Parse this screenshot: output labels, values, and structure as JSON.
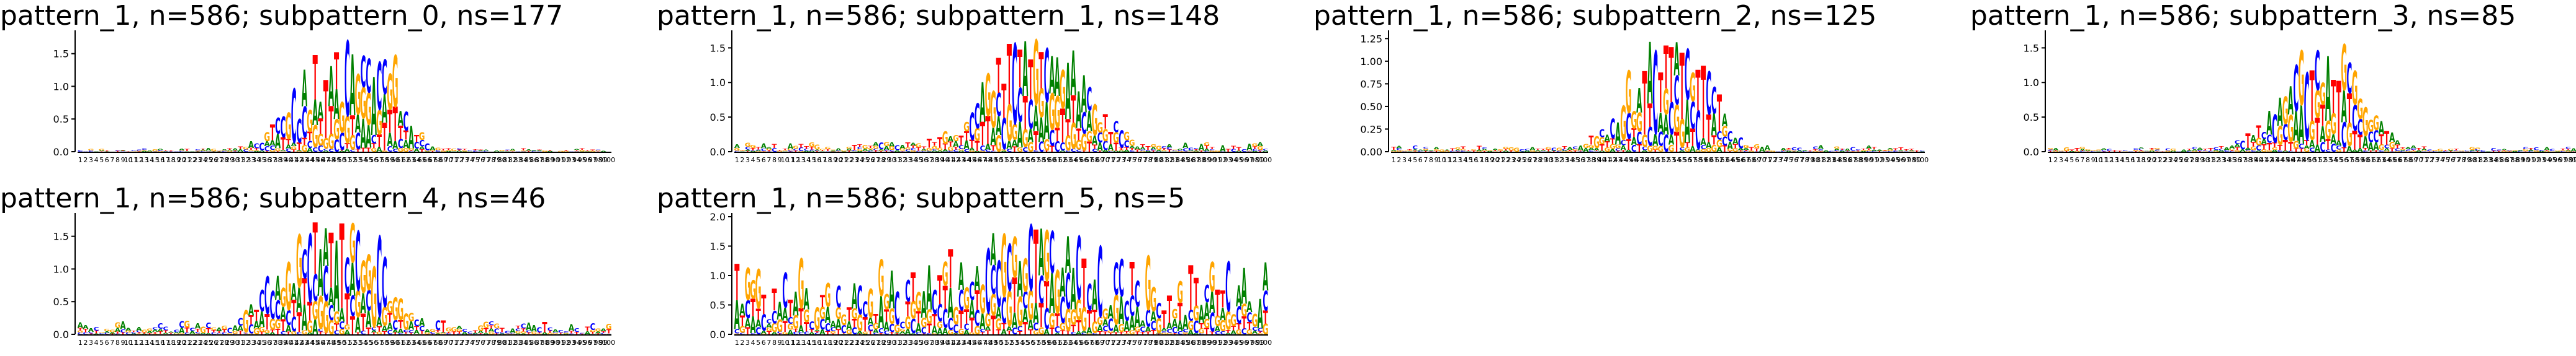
{
  "chart_data": [
    {
      "type": "sequence-logo",
      "title": "pattern_1, n=586; subpattern_0, ns=177",
      "xticks": "1-100",
      "yticks": [
        "0.0",
        "0.5",
        "1.0",
        "1.5"
      ],
      "ylim": [
        0,
        1.8
      ],
      "positions": 100,
      "profile": [
        {
          "center": 49,
          "width": 10,
          "height": 1.45
        },
        {
          "center": 58,
          "width": 5,
          "height": 0.9
        }
      ],
      "background": 0.03,
      "letter_colors": {
        "A": "#008000",
        "C": "#0000ff",
        "G": "#ffa500",
        "T": "#ff0000"
      }
    },
    {
      "type": "sequence-logo",
      "title": "pattern_1, n=586; subpattern_1, ns=148",
      "xticks": "1-100",
      "yticks": [
        "0.0",
        "0.5",
        "1.0",
        "1.5"
      ],
      "ylim": [
        0,
        1.7
      ],
      "positions": 100,
      "profile": [
        {
          "center": 54,
          "width": 10,
          "height": 1.3
        },
        {
          "center": 62,
          "width": 9,
          "height": 0.9
        }
      ],
      "background": 0.08,
      "letter_colors": {
        "A": "#008000",
        "C": "#0000ff",
        "G": "#ffa500",
        "T": "#ff0000"
      }
    },
    {
      "type": "sequence-logo",
      "title": "pattern_1, n=586; subpattern_2, ns=125",
      "xticks": "1-100",
      "yticks": [
        "0.00",
        "0.25",
        "0.50",
        "0.75",
        "1.00",
        "1.25"
      ],
      "ylim": [
        0,
        1.3
      ],
      "positions": 100,
      "profile": [
        {
          "center": 50,
          "width": 8,
          "height": 1.1
        },
        {
          "center": 57,
          "width": 6,
          "height": 0.8
        }
      ],
      "background": 0.04,
      "letter_colors": {
        "A": "#008000",
        "C": "#0000ff",
        "G": "#ffa500",
        "T": "#ff0000"
      }
    },
    {
      "type": "sequence-logo",
      "title": "pattern_1, n=586; subpattern_3, ns=85",
      "xticks": "1-100",
      "yticks": [
        "0.0",
        "0.5",
        "1.0",
        "1.5"
      ],
      "ylim": [
        0,
        1.7
      ],
      "positions": 100,
      "profile": [
        {
          "center": 50,
          "width": 9,
          "height": 1.4
        },
        {
          "center": 57,
          "width": 6,
          "height": 0.8
        }
      ],
      "background": 0.04,
      "letter_colors": {
        "A": "#008000",
        "C": "#0000ff",
        "G": "#ffa500",
        "T": "#ff0000"
      }
    },
    {
      "type": "sequence-logo",
      "title": "pattern_1, n=586; subpattern_4, ns=46",
      "xticks": "1-100",
      "yticks": [
        "0.0",
        "0.5",
        "1.0",
        "1.5"
      ],
      "ylim": [
        0,
        1.8
      ],
      "positions": 100,
      "profile": [
        {
          "center": 44,
          "width": 9,
          "height": 1.5
        },
        {
          "center": 54,
          "width": 7,
          "height": 1.2
        }
      ],
      "background": 0.12,
      "letter_colors": {
        "A": "#008000",
        "C": "#0000ff",
        "G": "#ffa500",
        "T": "#ff0000"
      }
    },
    {
      "type": "sequence-logo",
      "title": "pattern_1, n=586; subpattern_5, ns=5",
      "xticks": "1-100",
      "yticks": [
        "0.0",
        "0.5",
        "1.0",
        "1.5",
        "2.0"
      ],
      "ylim": [
        0,
        2.0
      ],
      "positions": 100,
      "profile": [
        {
          "center": 55,
          "width": 12,
          "height": 1.4
        }
      ],
      "background": 0.75,
      "letter_colors": {
        "A": "#008000",
        "C": "#0000ff",
        "G": "#ffa500",
        "T": "#ff0000"
      }
    }
  ]
}
